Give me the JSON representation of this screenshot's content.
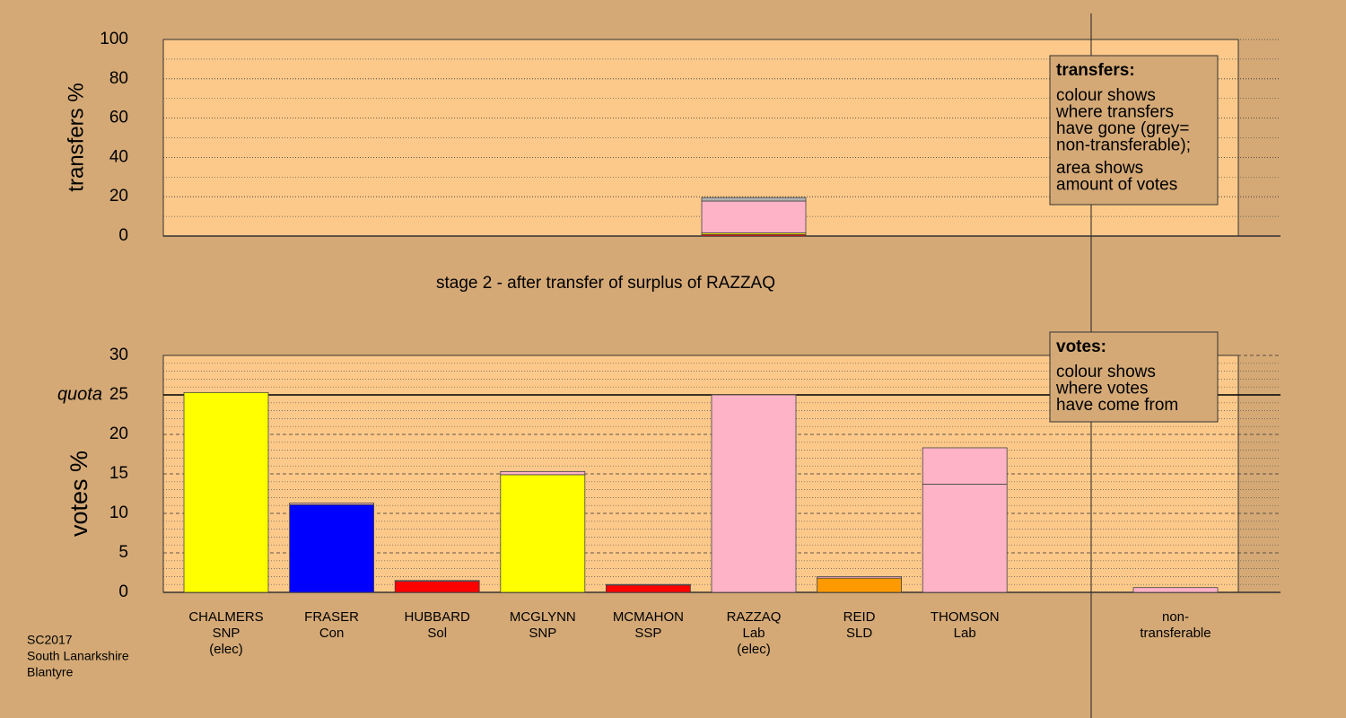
{
  "chart_data": [
    {
      "type": "stacked-bar",
      "y_label": "transfers %",
      "ylim": [
        0,
        100
      ],
      "yticks": [
        0,
        20,
        40,
        60,
        80,
        100
      ],
      "subtitle": "stage 2 - after transfer of surplus of RAZZAQ",
      "legend": {
        "title": "transfers:",
        "lines": [
          "colour shows",
          "where transfers",
          "have gone (grey=",
          "non-transferable);",
          "area shows",
          "amount of votes"
        ]
      },
      "bars": [
        {
          "segments": [
            {
              "color": "#ff0000",
              "value": 0.8
            },
            {
              "color": "#ffff00",
              "value": 0.8
            },
            {
              "color": "#ffb3c6",
              "value": 16.2
            },
            {
              "color": "#b0b0b0",
              "value": 1.8
            }
          ]
        }
      ]
    },
    {
      "type": "stacked-bar",
      "y_label": "votes %",
      "ylim": [
        0,
        30
      ],
      "yticks": [
        0,
        5,
        10,
        15,
        20,
        25,
        30
      ],
      "quota": {
        "value": 25,
        "label": "quota"
      },
      "legend": {
        "title": "votes:",
        "lines": [
          "colour shows",
          "where votes",
          "have come from"
        ]
      },
      "bars": [
        {
          "label": [
            "CHALMERS",
            "SNP",
            "(elec)"
          ],
          "segments": [
            {
              "color": "#ffff00",
              "value": 25.3
            }
          ]
        },
        {
          "label": [
            "FRASER",
            "Con"
          ],
          "segments": [
            {
              "color": "#0000ff",
              "value": 11.1
            },
            {
              "color": "#ffb3c6",
              "value": 0.2
            }
          ]
        },
        {
          "label": [
            "HUBBARD",
            "Sol"
          ],
          "segments": [
            {
              "color": "#ff0000",
              "value": 1.4
            },
            {
              "color": "#ffb3c6",
              "value": 0.1
            }
          ]
        },
        {
          "label": [
            "MCGLYNN",
            "SNP"
          ],
          "segments": [
            {
              "color": "#ffff00",
              "value": 14.9
            },
            {
              "color": "#ffb3c6",
              "value": 0.4
            }
          ]
        },
        {
          "label": [
            "MCMAHON",
            "SSP"
          ],
          "segments": [
            {
              "color": "#ff0000",
              "value": 0.9
            },
            {
              "color": "#ffb3c6",
              "value": 0.1
            }
          ]
        },
        {
          "label": [
            "RAZZAQ",
            "Lab",
            "(elec)"
          ],
          "segments": [
            {
              "color": "#ffb3c6",
              "value": 25.0
            }
          ]
        },
        {
          "label": [
            "REID",
            "SLD"
          ],
          "segments": [
            {
              "color": "#ff9900",
              "value": 1.8
            },
            {
              "color": "#ffb3c6",
              "value": 0.2
            }
          ]
        },
        {
          "label": [
            "THOMSON",
            "Lab"
          ],
          "segments": [
            {
              "color": "#ffb3c6",
              "value": 13.7
            },
            {
              "color": "#ffb3c6",
              "value": 4.6
            }
          ]
        },
        {
          "label": [
            "non-",
            "transferable"
          ],
          "segments": [
            {
              "color": "#ffb3c6",
              "value": 0.6
            }
          ]
        }
      ]
    }
  ],
  "footer": [
    "SC2017",
    "South Lanarkshire",
    "Blantyre"
  ]
}
